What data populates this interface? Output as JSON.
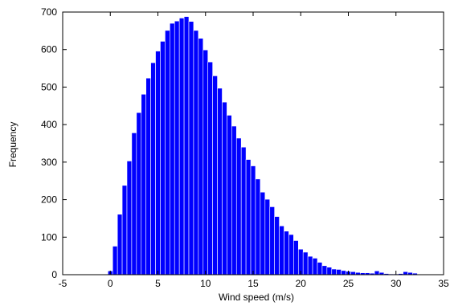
{
  "chart_data": {
    "type": "bar",
    "title": "",
    "xlabel": "Wind speed (m/s)",
    "ylabel": "Frequency",
    "xlim": [
      -5,
      35
    ],
    "ylim": [
      0,
      700
    ],
    "xticks": [
      -5,
      0,
      5,
      10,
      15,
      20,
      25,
      30,
      35
    ],
    "yticks": [
      0,
      100,
      200,
      300,
      400,
      500,
      600,
      700
    ],
    "grid": false,
    "legend": "none",
    "bar_width": 0.5,
    "bar_color": "#0000ff",
    "x": [
      0,
      0.5,
      1,
      1.5,
      2,
      2.5,
      3,
      3.5,
      4,
      4.5,
      5,
      5.5,
      6,
      6.5,
      7,
      7.5,
      8,
      8.5,
      9,
      9.5,
      10,
      10.5,
      11,
      11.5,
      12,
      12.5,
      13,
      13.5,
      14,
      14.5,
      15,
      15.5,
      16,
      16.5,
      17,
      17.5,
      18,
      18.5,
      19,
      19.5,
      20,
      20.5,
      21,
      21.5,
      22,
      22.5,
      23,
      23.5,
      24,
      24.5,
      25,
      25.5,
      26,
      26.5,
      27,
      27.5,
      28,
      28.5,
      29,
      29.5,
      30,
      30.5,
      31,
      31.5,
      32
    ],
    "values": [
      10,
      76,
      161,
      238,
      303,
      378,
      432,
      481,
      524,
      565,
      596,
      622,
      651,
      670,
      676,
      684,
      688,
      675,
      651,
      630,
      599,
      567,
      530,
      497,
      460,
      425,
      396,
      364,
      340,
      307,
      290,
      255,
      220,
      201,
      181,
      155,
      130,
      116,
      107,
      91,
      68,
      60,
      49,
      44,
      33,
      24,
      20,
      15,
      14,
      11,
      9,
      8,
      6,
      5,
      5,
      4,
      10,
      6,
      3,
      2,
      2,
      3,
      8,
      6,
      4
    ]
  }
}
